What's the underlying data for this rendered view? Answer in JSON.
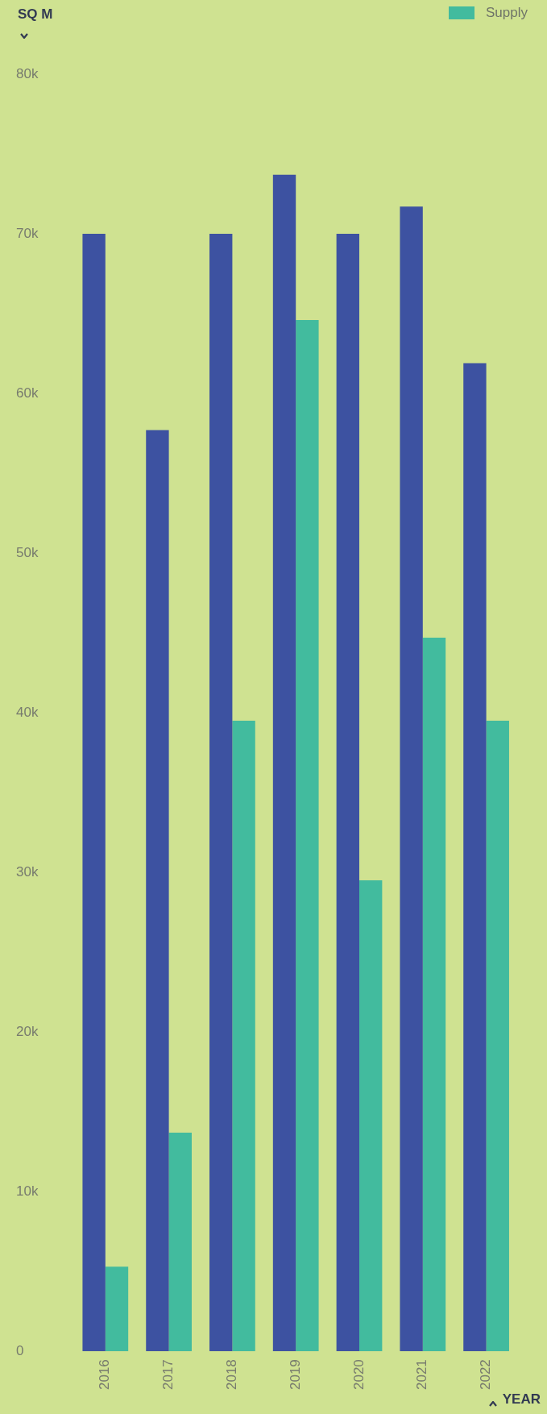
{
  "chart_data": {
    "type": "bar",
    "ylabel": "SQ M",
    "xlabel": "YEAR",
    "legend": "top right",
    "categories": [
      "2016",
      "2017",
      "2018",
      "2019",
      "2020",
      "2021",
      "2022"
    ],
    "series": [
      {
        "color": "#3d52a1",
        "values": [
          70000,
          57700,
          70000,
          73700,
          70000,
          71700,
          61900
        ]
      },
      {
        "name": "Supply",
        "color": "#42bb9e",
        "values": [
          5300,
          13700,
          39500,
          64600,
          29500,
          44700,
          39500
        ]
      }
    ],
    "ylim": [
      0,
      80000
    ],
    "yticks": [
      {
        "value": 0,
        "label": "0"
      },
      {
        "value": 10000,
        "label": "10k"
      },
      {
        "value": 20000,
        "label": "20k"
      },
      {
        "value": 30000,
        "label": "30k"
      },
      {
        "value": 40000,
        "label": "40k"
      },
      {
        "value": 50000,
        "label": "50k"
      },
      {
        "value": 60000,
        "label": "60k"
      },
      {
        "value": 70000,
        "label": "70k"
      },
      {
        "value": 80000,
        "label": "80k"
      }
    ]
  }
}
